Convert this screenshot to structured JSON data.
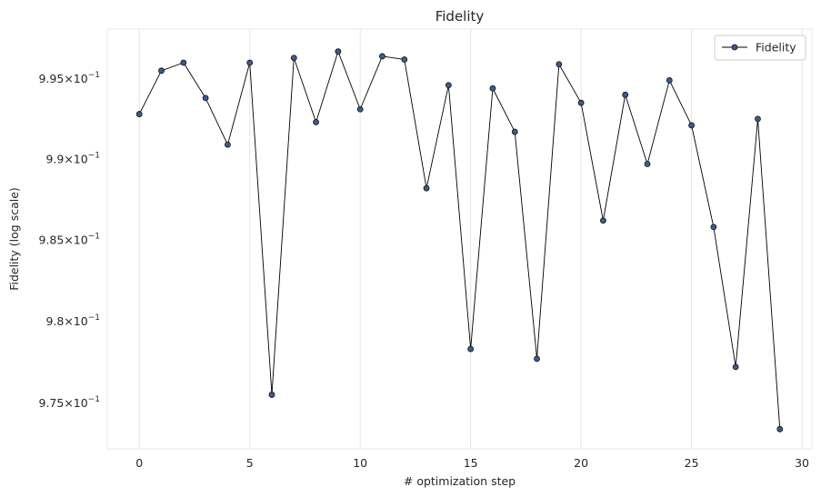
{
  "chart_data": {
    "type": "line",
    "title": "Fidelity",
    "xlabel": "# optimization step",
    "ylabel": "Fidelity (log scale)",
    "y_scale": "log",
    "x_ticks": [
      0,
      5,
      10,
      15,
      20,
      25,
      30
    ],
    "y_ticks": [
      {
        "value": 0.975,
        "mantissa": "9.75",
        "base": "10",
        "exponent": "−1"
      },
      {
        "value": 0.98,
        "mantissa": "9.8",
        "base": "10",
        "exponent": "−1"
      },
      {
        "value": 0.985,
        "mantissa": "9.85",
        "base": "10",
        "exponent": "−1"
      },
      {
        "value": 0.99,
        "mantissa": "9.9",
        "base": "10",
        "exponent": "−1"
      },
      {
        "value": 0.995,
        "mantissa": "9.95",
        "base": "10",
        "exponent": "−1"
      }
    ],
    "xlim": [
      -1.45,
      30.45
    ],
    "ylim": [
      0.9722,
      0.9981
    ],
    "grid": true,
    "legend_position": "top-right",
    "line_color": "#000000",
    "marker_color": "#3b5b92",
    "series": [
      {
        "name": "Fidelity",
        "x": [
          0,
          1,
          2,
          3,
          4,
          5,
          6,
          7,
          8,
          9,
          10,
          11,
          12,
          13,
          14,
          15,
          16,
          17,
          18,
          19,
          20,
          21,
          22,
          23,
          24,
          25,
          26,
          27,
          28,
          29
        ],
        "values": [
          0.9928,
          0.9955,
          0.996,
          0.9938,
          0.9909,
          0.996,
          0.9755,
          0.9963,
          0.9923,
          0.9967,
          0.9931,
          0.9964,
          0.9962,
          0.9882,
          0.9946,
          0.9783,
          0.9944,
          0.9917,
          0.9777,
          0.9959,
          0.9935,
          0.9862,
          0.994,
          0.9897,
          0.9949,
          0.9921,
          0.9858,
          0.9772,
          0.9925,
          0.9734
        ]
      }
    ]
  }
}
